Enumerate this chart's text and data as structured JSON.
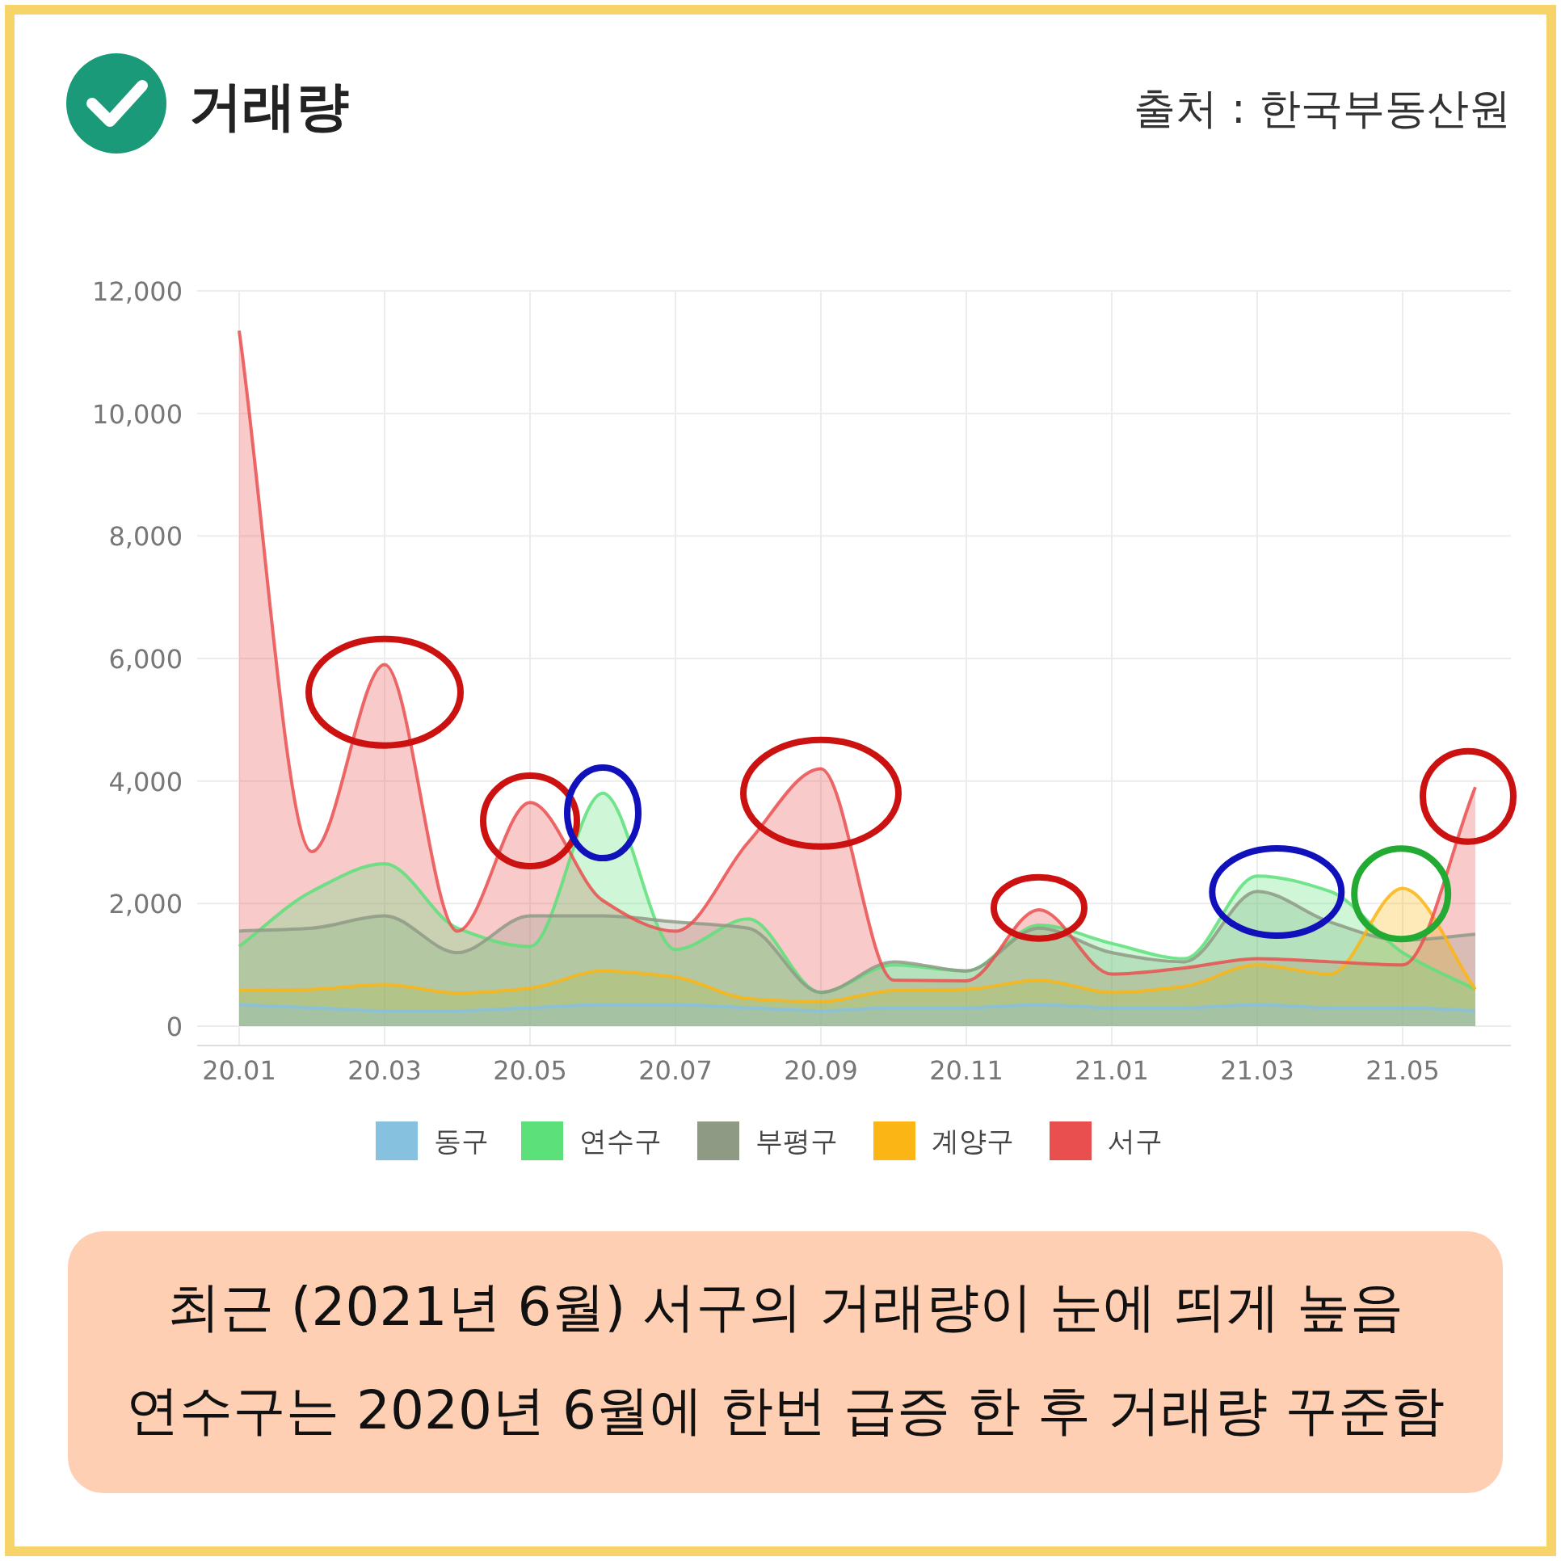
{
  "chart_data": {
    "type": "area",
    "title": "거래량",
    "categories": [
      "20.01",
      null,
      "20.03",
      null,
      "20.05",
      null,
      "20.07",
      null,
      "20.09",
      null,
      "20.11",
      null,
      "21.01",
      null,
      "21.03",
      null,
      "21.05",
      null
    ],
    "series": [
      {
        "name": "동구",
        "color": "#86c1e0",
        "values": [
          350,
          300,
          250,
          250,
          300,
          350,
          350,
          300,
          250,
          300,
          300,
          350,
          300,
          300,
          350,
          300,
          300,
          250
        ]
      },
      {
        "name": "연수구",
        "color": "#5ce07a",
        "values": [
          1300,
          2200,
          2650,
          1600,
          1300,
          3800,
          1250,
          1750,
          550,
          1000,
          900,
          1650,
          1350,
          1100,
          2450,
          2200,
          1200,
          600
        ]
      },
      {
        "name": "부평구",
        "color": "#8f9a85",
        "values": [
          1550,
          1600,
          1800,
          1200,
          1800,
          1800,
          1700,
          1600,
          550,
          1050,
          900,
          1600,
          1200,
          1050,
          2200,
          1700,
          1400,
          1500
        ]
      },
      {
        "name": "계양구",
        "color": "#fbb514",
        "values": [
          580,
          600,
          680,
          540,
          620,
          900,
          800,
          450,
          400,
          580,
          600,
          750,
          550,
          650,
          1000,
          850,
          2250,
          600
        ]
      },
      {
        "name": "서구",
        "color": "#ea4f4f",
        "values": [
          11350,
          2850,
          5900,
          1550,
          3650,
          2050,
          1550,
          3000,
          4200,
          750,
          740,
          1900,
          850,
          950,
          1100,
          1050,
          1000,
          3900
        ]
      }
    ],
    "ylim": [
      0,
      12000
    ],
    "yticks": [
      0,
      {
        "value": 2000,
        "label": "2,000"
      },
      {
        "value": 4000,
        "label": "4,000"
      },
      {
        "value": 6000,
        "label": "6,000"
      },
      {
        "value": 8000,
        "label": "8,000"
      },
      {
        "value": 10000,
        "label": "10,000"
      },
      {
        "value": 12000,
        "label": "12,000"
      }
    ],
    "grid": true,
    "legend": "bottom",
    "annotations": [
      "출처 : 한국부동산원",
      "최근 (2021년 6월) 서구의 거래량이 눈에 띄게 높음",
      "연수구는 2020년 6월에 한번 급증 한 후 거래량 꾸준함"
    ]
  }
}
